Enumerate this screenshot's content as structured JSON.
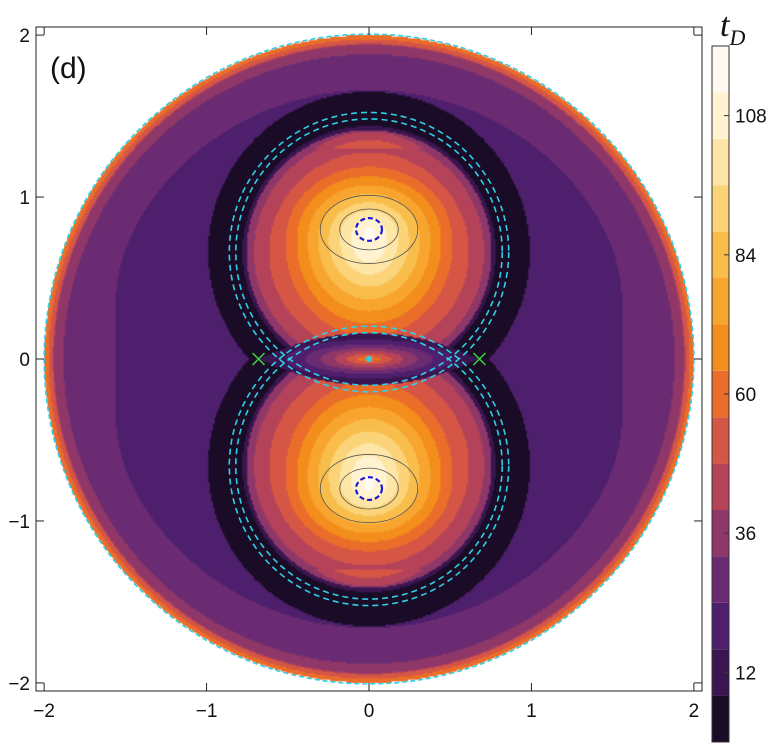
{
  "chart_data": {
    "type": "heatmap",
    "panel_label": "(d)",
    "colorbar_title": "t",
    "colorbar_title_subscript": "D",
    "x_ticks": [
      "−2",
      "−1",
      "0",
      "1",
      "2"
    ],
    "y_ticks": [
      "−2",
      "−1",
      "0",
      "1",
      "2"
    ],
    "x_range": [
      -2.05,
      2.05
    ],
    "y_range": [
      -2.05,
      2.05
    ],
    "colorbar_ticks": [
      "12",
      "36",
      "60",
      "84",
      "108"
    ],
    "colorbar_tick_values": [
      12,
      36,
      60,
      84,
      108
    ],
    "colorbar_range": [
      0,
      120
    ],
    "levels": [
      0,
      8,
      16,
      24,
      32,
      40,
      48,
      56,
      64,
      72,
      80,
      88,
      96,
      104,
      112,
      120
    ],
    "palette": [
      "#1a0b26",
      "#3a1650",
      "#4e1f6d",
      "#6a2b72",
      "#8e3768",
      "#b4435a",
      "#d65645",
      "#ea6e2a",
      "#f38d1c",
      "#f7a52f",
      "#f9bd4c",
      "#fbd47a",
      "#fde6a6",
      "#fff3d2",
      "#fffaf0"
    ],
    "domain_radius": 2,
    "lobe_centers": [
      [
        0,
        0.8
      ],
      [
        0,
        -0.8
      ]
    ],
    "lobe_peak_value": 116,
    "outer_field_value": 20,
    "separatrix_value": 4,
    "crossing_points": [
      [
        -0.68,
        0
      ],
      [
        0.68,
        0
      ]
    ],
    "contour_line_colors": {
      "separatrix": "#2fd0e6",
      "inner_core": "#1a1ad8",
      "level_lines": "#555555"
    }
  }
}
